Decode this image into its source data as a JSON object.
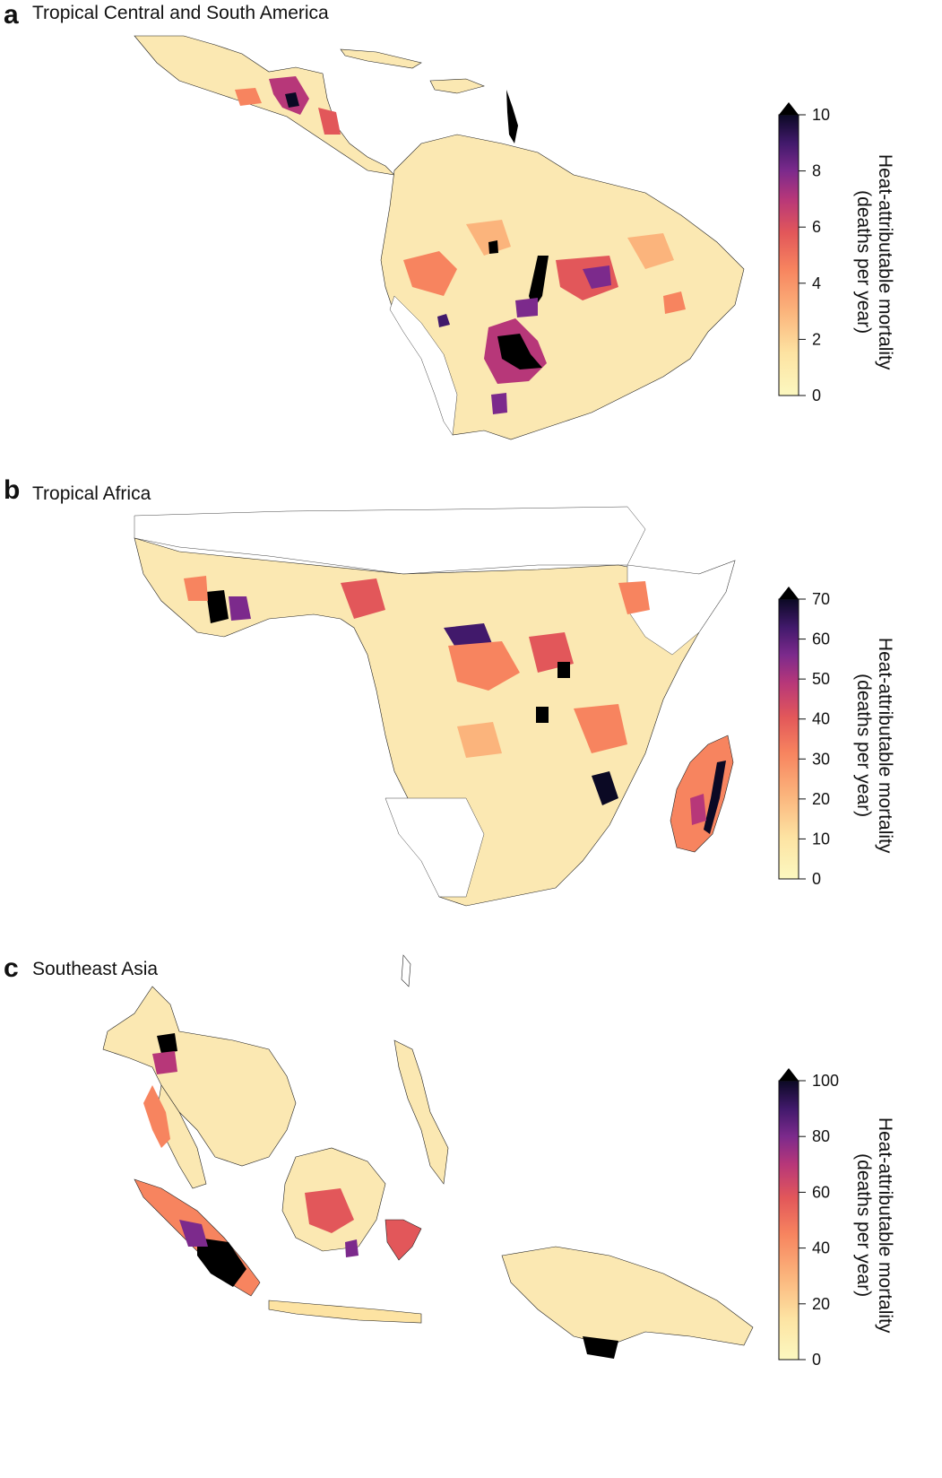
{
  "panels": [
    {
      "letter": "a",
      "title": "Tropical Central and South America",
      "legend": {
        "title_line1": "Heat-attributable mortality",
        "title_line2": "(deaths per year)",
        "ticks": [
          "0",
          "2",
          "4",
          "6",
          "8",
          "10"
        ],
        "min": 0,
        "max": 10
      }
    },
    {
      "letter": "b",
      "title": "Tropical Africa",
      "legend": {
        "title_line1": "Heat-attributable mortality",
        "title_line2": "(deaths per year)",
        "ticks": [
          "0",
          "10",
          "20",
          "30",
          "40",
          "50",
          "60",
          "70"
        ],
        "min": 0,
        "max": 70
      }
    },
    {
      "letter": "c",
      "title": "Southeast Asia",
      "legend": {
        "title_line1": "Heat-attributable mortality",
        "title_line2": "(deaths per year)",
        "ticks": [
          "0",
          "20",
          "40",
          "60",
          "80",
          "100"
        ],
        "min": 0,
        "max": 100
      }
    }
  ],
  "colormap": {
    "name": "magma_r",
    "stops": [
      "#fcf8c0",
      "#fde3a2",
      "#fbb47c",
      "#f7845f",
      "#e2575a",
      "#b73779",
      "#7c2a8c",
      "#41196b",
      "#0b0924",
      "#000000"
    ]
  },
  "colors": {
    "no_data": "#ffffff",
    "boundary": "#222222"
  }
}
